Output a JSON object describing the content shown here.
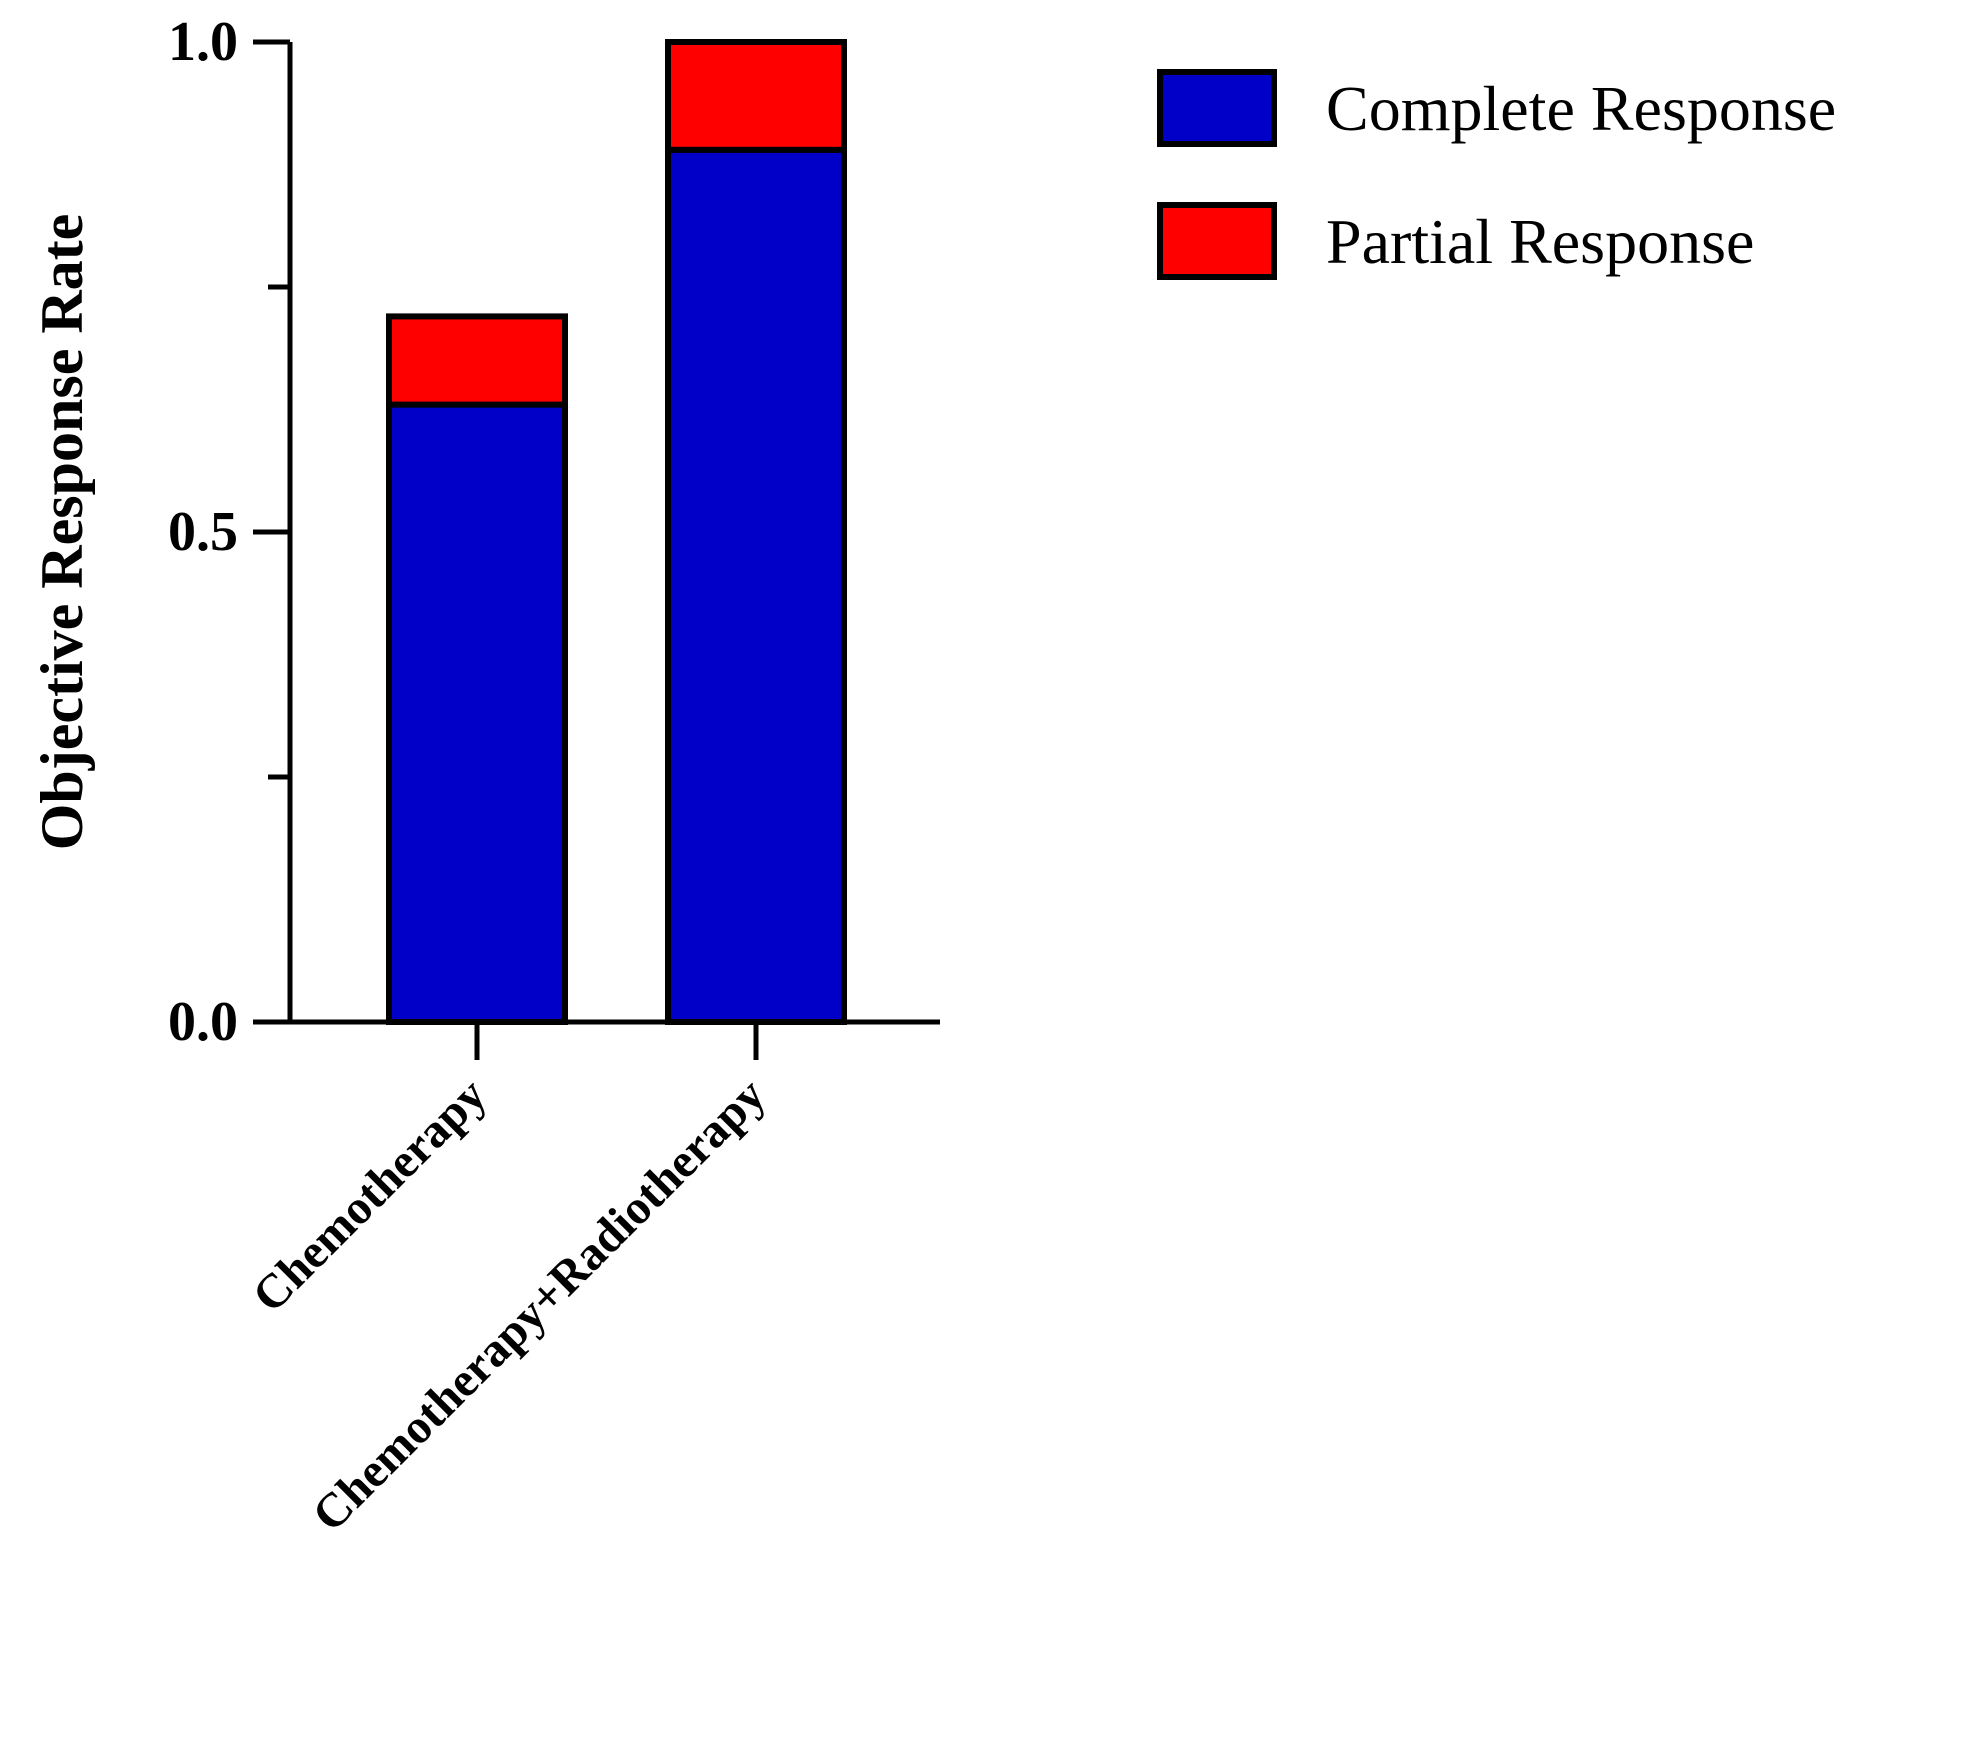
{
  "chart_data": {
    "type": "bar",
    "stacked": true,
    "categories": [
      "Chemotherapy",
      "Chemotherapy+Radiotherapy"
    ],
    "series": [
      {
        "name": "Complete Response",
        "values": [
          0.63,
          0.89
        ],
        "color": "#0000c8"
      },
      {
        "name": "Partial Response",
        "values": [
          0.09,
          0.11
        ],
        "color": "#ff0000"
      }
    ],
    "ylabel": "Objective Response Rate",
    "ylim": [
      0,
      1.0
    ],
    "yticks": [
      "0.0",
      "0.5",
      "1.0"
    ],
    "legend_position": "top-right",
    "grid": false
  }
}
